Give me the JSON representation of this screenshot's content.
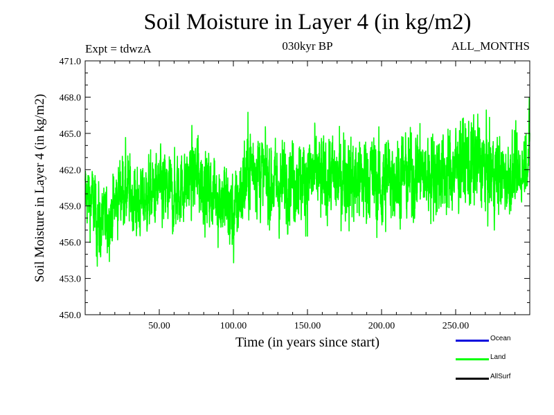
{
  "chart_data": {
    "type": "line",
    "title": "Soil Moisture in Layer 4 (in kg/m2)",
    "subtitle_left": "Expt = tdwzA",
    "subtitle_center": "030kyr BP",
    "subtitle_right": "ALL_MONTHS",
    "xlabel": "Time (in years since start)",
    "ylabel": "Soil Moisture in Layer 4 (in kg/m2)",
    "xlim": [
      0,
      300
    ],
    "ylim": [
      450.0,
      471.0
    ],
    "xticks": [
      50,
      100,
      150,
      200,
      250
    ],
    "xtick_labels": [
      "50.00",
      "100.00",
      "150.00",
      "200.00",
      "250.00"
    ],
    "yticks": [
      450.0,
      453.0,
      456.0,
      459.0,
      462.0,
      465.0,
      468.0,
      471.0
    ],
    "ytick_labels": [
      "450.0",
      "453.0",
      "456.0",
      "459.0",
      "462.0",
      "465.0",
      "468.0",
      "471.0"
    ],
    "grid": false,
    "legend_position": "bottom-right",
    "series": [
      {
        "name": "Land",
        "color": "#00ff00",
        "x": [
          0,
          5,
          10,
          15,
          20,
          25,
          30,
          35,
          40,
          45,
          50,
          55,
          60,
          65,
          70,
          75,
          80,
          85,
          90,
          95,
          100,
          105,
          110,
          115,
          120,
          125,
          130,
          135,
          140,
          145,
          150,
          155,
          160,
          165,
          170,
          175,
          180,
          185,
          190,
          195,
          200,
          205,
          210,
          215,
          220,
          225,
          230,
          235,
          240,
          245,
          250,
          255,
          260,
          265,
          270,
          275,
          280,
          285,
          290,
          295,
          300
        ],
        "mean": [
          460.0,
          459.5,
          457.5,
          458.0,
          459.0,
          460.5,
          460.0,
          459.0,
          459.5,
          460.0,
          460.5,
          460.0,
          459.5,
          460.5,
          461.0,
          461.5,
          460.5,
          460.0,
          460.0,
          459.5,
          458.5,
          460.0,
          461.5,
          462.5,
          461.5,
          461.0,
          460.5,
          461.0,
          461.5,
          461.0,
          461.5,
          461.5,
          461.0,
          461.5,
          461.0,
          461.5,
          461.0,
          461.0,
          461.5,
          461.5,
          460.5,
          461.5,
          461.5,
          461.5,
          461.5,
          462.0,
          461.5,
          462.0,
          461.5,
          461.5,
          462.0,
          462.5,
          462.0,
          462.5,
          462.0,
          461.5,
          461.5,
          461.0,
          461.0,
          461.5,
          463.0
        ],
        "high": [
          463.5,
          463.0,
          461.5,
          461.0,
          463.0,
          465.2,
          464.0,
          463.0,
          463.5,
          464.0,
          464.2,
          464.5,
          464.0,
          464.5,
          465.5,
          466.0,
          465.5,
          464.5,
          464.0,
          463.5,
          462.0,
          464.5,
          467.8,
          467.5,
          466.0,
          465.5,
          465.0,
          465.5,
          466.0,
          465.5,
          466.0,
          466.5,
          465.5,
          466.0,
          466.0,
          466.5,
          465.5,
          466.0,
          466.5,
          466.0,
          465.5,
          466.5,
          466.0,
          466.0,
          466.5,
          467.0,
          466.0,
          467.0,
          466.5,
          466.5,
          467.0,
          467.5,
          468.4,
          467.5,
          467.0,
          466.5,
          466.0,
          465.5,
          466.0,
          466.5,
          468.6
        ],
        "low": [
          457.5,
          455.0,
          452.8,
          454.0,
          455.5,
          456.5,
          456.5,
          455.5,
          456.0,
          456.0,
          456.5,
          455.0,
          456.0,
          456.5,
          457.0,
          457.5,
          456.5,
          456.0,
          455.0,
          454.0,
          452.5,
          456.0,
          457.5,
          458.0,
          457.0,
          456.5,
          455.5,
          456.5,
          457.0,
          456.5,
          456.5,
          457.0,
          456.5,
          457.0,
          456.0,
          457.0,
          456.5,
          456.0,
          456.5,
          456.0,
          454.7,
          456.5,
          457.0,
          457.0,
          456.5,
          457.5,
          457.0,
          457.5,
          457.0,
          457.0,
          457.5,
          458.0,
          457.5,
          458.0,
          457.5,
          457.0,
          457.0,
          458.0,
          458.5,
          459.0,
          461.0
        ]
      }
    ],
    "legend": [
      {
        "name": "Ocean",
        "color": "#0000dd"
      },
      {
        "name": "Land",
        "color": "#00ff00"
      },
      {
        "name": "AllSurf",
        "color": "#000000"
      }
    ]
  }
}
